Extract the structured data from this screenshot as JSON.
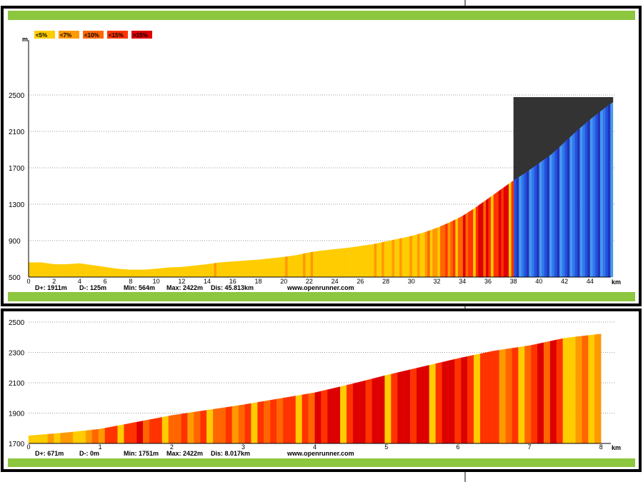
{
  "legend": [
    {
      "label": "<5%",
      "color": "#ffcc00"
    },
    {
      "label": "<7%",
      "color": "#ff9900"
    },
    {
      "label": "<10%",
      "color": "#ff6600"
    },
    {
      "label": "<15%",
      "color": "#ff3300"
    },
    {
      "label": ">15%",
      "color": "#dd0000"
    }
  ],
  "colors": {
    "frame": "#000000",
    "green_bar": "#8dc63f",
    "grid": "#999999",
    "overlay": "#333333",
    "zoom_fill": "#3355dd",
    "zoom_stripes": [
      "#2233bb",
      "#2255dd",
      "#3377ee",
      "#4499ee"
    ]
  },
  "chart_data": [
    {
      "type": "area",
      "ylabel": "m",
      "xlabel": "km",
      "xlim": [
        0,
        45.8
      ],
      "ylim": [
        500,
        2500
      ],
      "x_ticks": [
        "0",
        "2",
        "4",
        "6",
        "8",
        "10",
        "12",
        "14",
        "16",
        "18",
        "20",
        "22",
        "24",
        "26",
        "28",
        "30",
        "32",
        "34",
        "36",
        "38",
        "40",
        "42",
        "44"
      ],
      "y_ticks": [
        "500",
        "900",
        "1300",
        "1700",
        "2100",
        "2500"
      ],
      "grid": true,
      "legend_position": "top-left",
      "highlight": {
        "x_start": 38,
        "x_end": 45.813,
        "color": "#3355dd"
      },
      "series": [
        {
          "x": [
            0,
            1,
            2,
            3,
            4,
            5,
            6,
            7,
            8,
            9,
            10,
            11,
            12,
            13,
            14,
            15,
            16,
            17,
            18,
            19,
            20,
            21,
            22,
            23,
            24,
            25,
            26,
            27,
            28,
            29,
            30,
            31,
            32,
            33,
            34,
            35,
            36,
            37,
            38,
            39,
            40,
            41,
            42,
            43,
            44,
            45,
            45.8
          ],
          "y": [
            660,
            660,
            640,
            640,
            650,
            630,
            610,
            590,
            580,
            580,
            590,
            605,
            610,
            625,
            640,
            660,
            670,
            680,
            690,
            705,
            720,
            740,
            770,
            790,
            805,
            820,
            840,
            860,
            890,
            920,
            950,
            990,
            1040,
            1100,
            1170,
            1260,
            1360,
            1460,
            1560,
            1650,
            1751,
            1850,
            1980,
            2110,
            2230,
            2340,
            2422
          ]
        }
      ],
      "stats": {
        "d_plus": "D+: 1911m",
        "d_minus": "D-: 125m",
        "min": "Min: 564m",
        "max": "Max: 2422m",
        "dist": "Dis: 45.813km"
      },
      "watermark": "www.openrunner.com"
    },
    {
      "type": "area",
      "xlabel": "km",
      "xlim": [
        0,
        8.017
      ],
      "ylim": [
        1700,
        2500
      ],
      "x_ticks": [
        "0",
        "1",
        "2",
        "3",
        "4",
        "5",
        "6",
        "7",
        "8"
      ],
      "y_ticks": [
        "1700",
        "1900",
        "2100",
        "2300",
        "2500"
      ],
      "grid": true,
      "series": [
        {
          "x": [
            0,
            0.5,
            1,
            1.5,
            2,
            2.5,
            3,
            3.5,
            4,
            4.5,
            5,
            5.5,
            6,
            6.5,
            7,
            7.5,
            8
          ],
          "y": [
            1751,
            1770,
            1795,
            1840,
            1885,
            1920,
            1955,
            1995,
            2035,
            2090,
            2150,
            2205,
            2260,
            2310,
            2345,
            2395,
            2422
          ]
        }
      ],
      "stats": {
        "d_plus": "D+: 671m",
        "d_minus": "D-: 0m",
        "min": "Min: 1751m",
        "max": "Max: 2422m",
        "dist": "Dis: 8.017km"
      },
      "watermark": "www.openrunner.com"
    }
  ]
}
